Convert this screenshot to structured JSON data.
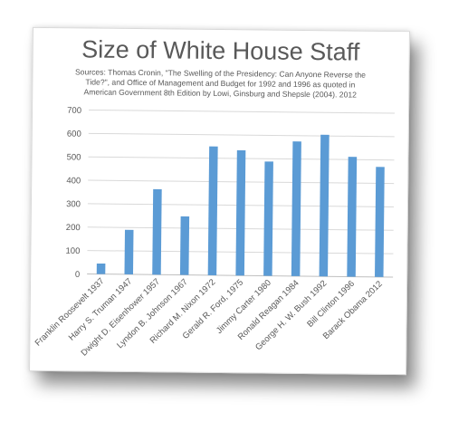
{
  "chart_data": {
    "type": "bar",
    "title": "Size of White House Staff",
    "subtitle_lines": [
      "Sources: Thomas Cronin, \"The Swelling of the Presidency: Can Anyone Reverse the",
      "Tide?\", and Office of Management and Budget for 1992 and 1996 as quoted in",
      "American Government 8th Edition by Lowi, Ginsburg and Shepsle (2004).  2012"
    ],
    "categories": [
      "Franklin Roosevelt 1937",
      "Harry S. Truman 1947",
      "Dwight D. Eisenhower 1957",
      "Lyndon B. Johnson 1967",
      "Richard M. Nixon 1972",
      "Gerald R. Ford, 1975",
      "Jimmy Carter 1980",
      "Ronald Reagan 1984",
      "George H. W. Bush 1992",
      "Bill Clinton 1996",
      "Barack Obama 2012"
    ],
    "values": [
      45,
      190,
      365,
      250,
      550,
      535,
      488,
      575,
      605,
      512,
      470
    ],
    "ylim": [
      0,
      700
    ],
    "yticks": [
      "0",
      "100",
      "200",
      "300",
      "400",
      "500",
      "600",
      "700"
    ],
    "grid": true,
    "legend": "none",
    "bar_color": "#5b9bd5",
    "xlabel": "",
    "ylabel": ""
  }
}
